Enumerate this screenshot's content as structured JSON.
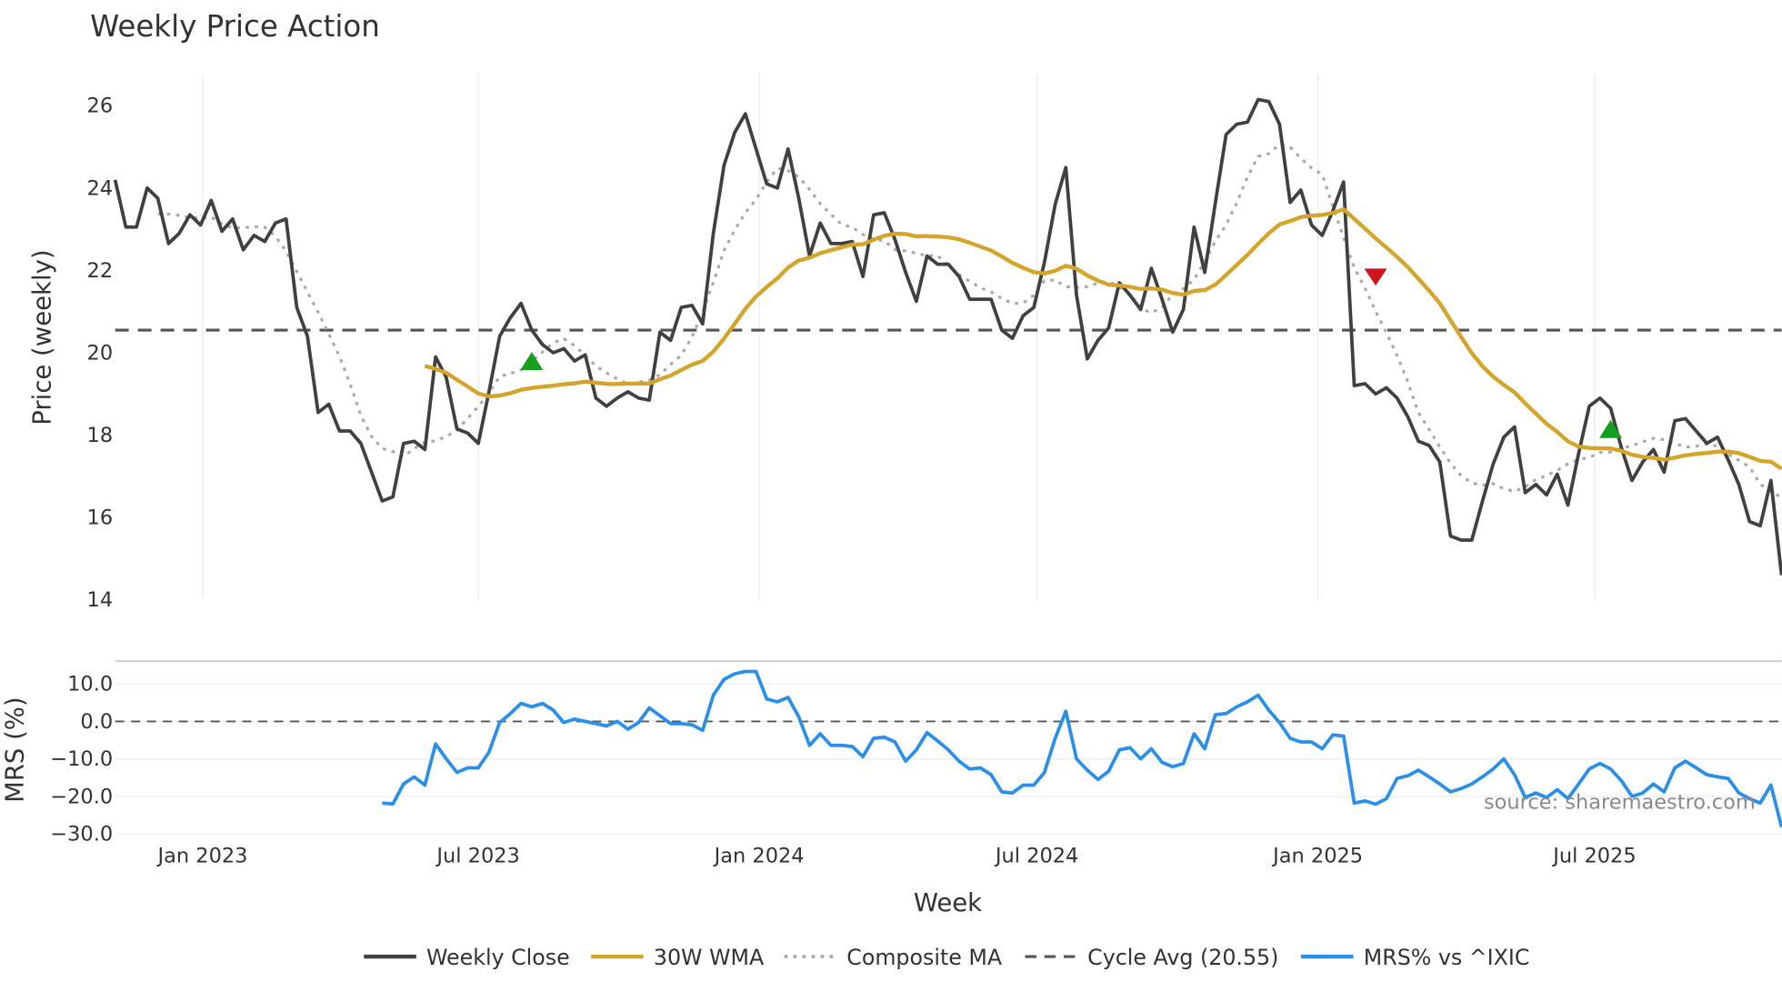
{
  "chart_data": {
    "type": "line",
    "title": "Weekly Price Action",
    "xlabel": "Week",
    "ylabel": "Price (weekly)",
    "ylabel_lower": "MRS (%)",
    "ylim": [
      14,
      26.8
    ],
    "ylim_lower": [
      -30,
      14
    ],
    "yticks": [
      14,
      16,
      18,
      20,
      22,
      24,
      26
    ],
    "yticks_lower": [
      "10.0",
      "0.0",
      "−10.0",
      "−20.0",
      "−30.0"
    ],
    "yticks_lower_values": [
      10,
      0,
      -10,
      -20,
      -30
    ],
    "xticks": [
      {
        "label": "Jan 2023",
        "week": 8.2
      },
      {
        "label": "Jul 2023",
        "week": 34.0
      },
      {
        "label": "Jan 2024",
        "week": 60.3
      },
      {
        "label": "Jul 2024",
        "week": 86.3
      },
      {
        "label": "Jan 2025",
        "week": 112.6
      },
      {
        "label": "Jul 2025",
        "week": 138.5
      }
    ],
    "grid": true,
    "legend_position": "bottom-center",
    "cycle_avg": 20.55,
    "wma_window": 30,
    "composite_ema_span": 10,
    "series": [
      {
        "name": "Weekly Close",
        "color": "#404040",
        "values": [
          24.2,
          23.05,
          23.05,
          24.0,
          23.75,
          22.65,
          22.9,
          23.35,
          23.1,
          23.7,
          22.95,
          23.25,
          22.5,
          22.85,
          22.7,
          23.15,
          23.25,
          21.1,
          20.4,
          18.55,
          18.75,
          18.1,
          18.1,
          17.8,
          17.1,
          16.4,
          16.5,
          17.8,
          17.85,
          17.65,
          19.9,
          19.4,
          18.15,
          18.05,
          17.8,
          19.05,
          20.4,
          20.85,
          21.2,
          20.55,
          20.2,
          20.0,
          20.1,
          19.8,
          19.95,
          18.9,
          18.7,
          18.9,
          19.05,
          18.9,
          18.85,
          20.5,
          20.3,
          21.1,
          21.15,
          20.7,
          22.9,
          24.55,
          25.35,
          25.8,
          24.95,
          24.1,
          24.0,
          24.95,
          23.75,
          22.35,
          23.15,
          22.65,
          22.65,
          22.7,
          21.85,
          23.35,
          23.4,
          22.75,
          21.95,
          21.25,
          22.35,
          22.15,
          22.15,
          21.85,
          21.3,
          21.3,
          21.3,
          20.55,
          20.35,
          20.9,
          21.1,
          22.2,
          23.6,
          24.5,
          21.4,
          19.85,
          20.3,
          20.6,
          21.7,
          21.4,
          21.05,
          22.05,
          21.3,
          20.5,
          21.05,
          23.05,
          21.95,
          23.65,
          25.3,
          25.55,
          25.6,
          26.15,
          26.1,
          25.55,
          23.65,
          23.95,
          23.1,
          22.85,
          23.45,
          24.15,
          19.2,
          19.25,
          19.0,
          19.15,
          18.9,
          18.45,
          17.85,
          17.75,
          17.35,
          15.55,
          15.45,
          15.45,
          16.4,
          17.3,
          17.95,
          18.2,
          16.6,
          16.8,
          16.55,
          17.05,
          16.3,
          17.55,
          18.7,
          18.9,
          18.65,
          17.7,
          16.9,
          17.35,
          17.65,
          17.1,
          18.35,
          18.4,
          18.1,
          17.8,
          17.95,
          17.4,
          16.8,
          15.9,
          15.8,
          16.9,
          14.6
        ]
      },
      {
        "name": "30W WMA",
        "color": "#D4A52A"
      },
      {
        "name": "Composite MA",
        "color": "#AAAAAA"
      },
      {
        "name": "Cycle Avg (20.55)",
        "color": "#555555"
      },
      {
        "name": "MRS% vs ^IXIC",
        "color": "#2A8FE8",
        "values": [
          -21.8,
          -22,
          -16.7,
          -14.8,
          -17,
          -6,
          -10,
          -13.6,
          -12.4,
          -12.4,
          -8.2,
          -0.3,
          2.1,
          4.8,
          3.9,
          4.8,
          3,
          -0.3,
          0.6,
          0,
          -0.6,
          -1.2,
          0,
          -2.1,
          -0.3,
          3.6,
          1.5,
          -0.6,
          -0.6,
          -0.9,
          -2.4,
          7,
          11.2,
          12.7,
          13.3,
          13.3,
          6,
          5.2,
          6.4,
          1.2,
          -6.4,
          -3.3,
          -6.4,
          -6.4,
          -6.7,
          -9.4,
          -4.5,
          -4.2,
          -5.5,
          -10.6,
          -7.6,
          -3,
          -5.2,
          -7.6,
          -10.6,
          -12.7,
          -12.4,
          -14.2,
          -18.8,
          -19.1,
          -17,
          -17,
          -13.6,
          -4.5,
          2.7,
          -10,
          -13,
          -15.5,
          -13.3,
          -7.6,
          -7,
          -10,
          -7.3,
          -10.9,
          -12.1,
          -11.2,
          -3.3,
          -7.3,
          1.8,
          2.1,
          3.9,
          5.2,
          7,
          3,
          -0.3,
          -4.5,
          -5.5,
          -5.5,
          -7.3,
          -3.6,
          -3.9,
          -21.8,
          -21.2,
          -22.1,
          -20.6,
          -15.2,
          -14.5,
          -13,
          -14.8,
          -16.7,
          -18.8,
          -17.9,
          -16.7,
          -14.8,
          -12.7,
          -10,
          -14.2,
          -20.3,
          -19.1,
          -20.3,
          -18.2,
          -20.6,
          -16.7,
          -12.7,
          -11.2,
          -12.7,
          -15.8,
          -20,
          -19.1,
          -16.7,
          -18.8,
          -12.4,
          -10.6,
          -12.4,
          -14.2,
          -14.8,
          -15.2,
          -19.1,
          -20.6,
          -21.8,
          -17,
          -28.2
        ]
      }
    ],
    "signals": [
      {
        "type": "buy",
        "week": 39,
        "price": 19.8,
        "color": "#14A01E"
      },
      {
        "type": "sell",
        "week": 118,
        "price": 21.85,
        "color": "#D0141E"
      },
      {
        "type": "buy",
        "week": 140,
        "price": 18.15,
        "color": "#14A01E"
      }
    ],
    "watermark": "source: sharemaestro.com"
  }
}
